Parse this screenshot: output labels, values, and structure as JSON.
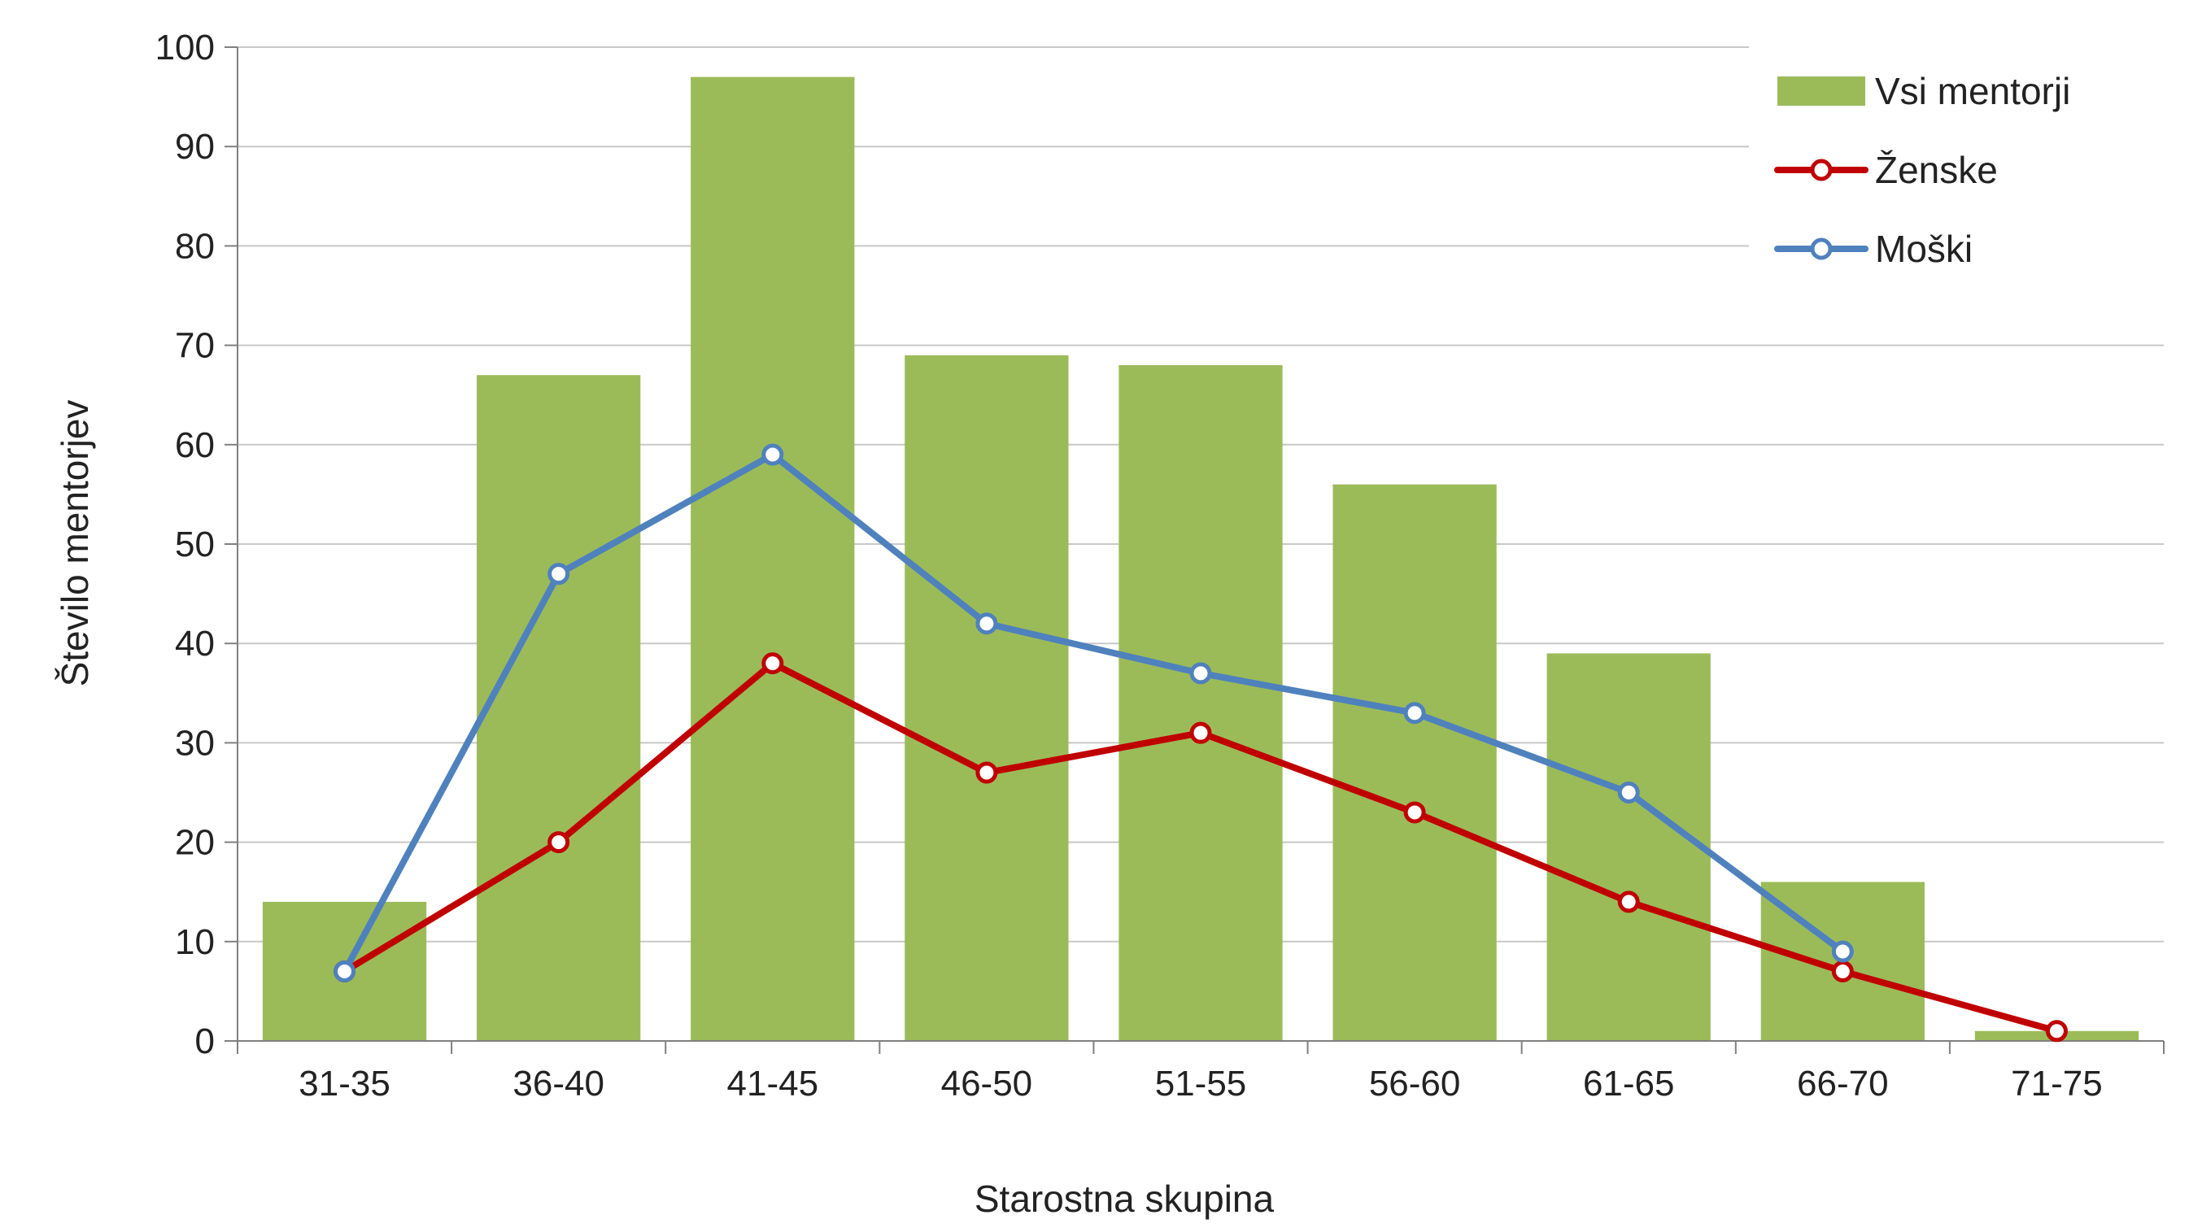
{
  "chart_data": {
    "type": "bar",
    "title": "",
    "xlabel": "Starostna skupina",
    "ylabel": "Število mentorjev",
    "categories": [
      "31-35",
      "36-40",
      "41-45",
      "46-50",
      "51-55",
      "56-60",
      "61-65",
      "66-70",
      "71-75"
    ],
    "ylim": [
      0,
      100
    ],
    "yticks": [
      0,
      10,
      20,
      30,
      40,
      50,
      60,
      70,
      80,
      90,
      100
    ],
    "grid": true,
    "legend_position": "top-right",
    "series": [
      {
        "name": "Vsi mentorji",
        "kind": "bar",
        "color": "#9bbb59",
        "values": [
          14,
          67,
          97,
          69,
          68,
          56,
          39,
          16,
          1
        ]
      },
      {
        "name": "Ženske",
        "kind": "line",
        "color": "#c00000",
        "values": [
          7,
          20,
          38,
          27,
          31,
          23,
          14,
          7,
          1
        ]
      },
      {
        "name": "Moški",
        "kind": "line",
        "color": "#4f81bd",
        "values": [
          7,
          47,
          59,
          42,
          37,
          33,
          25,
          9,
          null
        ]
      }
    ]
  }
}
